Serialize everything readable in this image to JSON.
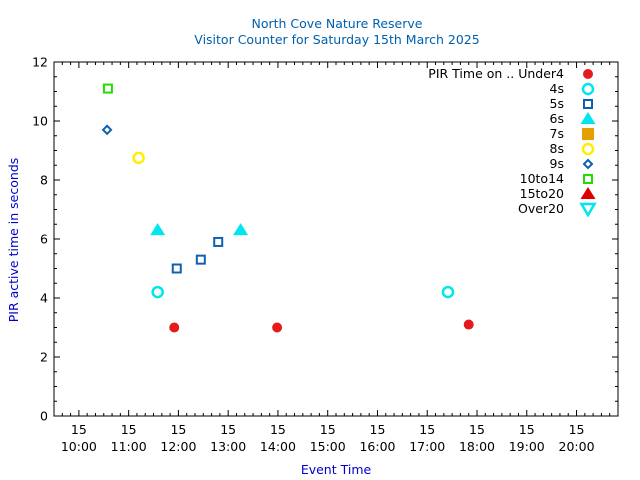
{
  "chart_data": {
    "type": "scatter",
    "title": "North Cove Nature Reserve",
    "subtitle": "Visitor Counter for Saturday 15th March 2025",
    "xlabel": "Event Time",
    "ylabel": "PIR active time in seconds",
    "xlim": [
      "09:30",
      "20:50"
    ],
    "ylim": [
      0,
      12
    ],
    "y_ticks": [
      0,
      2,
      4,
      6,
      8,
      10,
      12
    ],
    "x_ticks": [
      {
        "value": "10:00",
        "day": "15",
        "time": "10:00"
      },
      {
        "value": "11:00",
        "day": "15",
        "time": "11:00"
      },
      {
        "value": "12:00",
        "day": "15",
        "time": "12:00"
      },
      {
        "value": "13:00",
        "day": "15",
        "time": "13:00"
      },
      {
        "value": "14:00",
        "day": "15",
        "time": "14:00"
      },
      {
        "value": "15:00",
        "day": "15",
        "time": "15:00"
      },
      {
        "value": "16:00",
        "day": "15",
        "time": "16:00"
      },
      {
        "value": "17:00",
        "day": "15",
        "time": "17:00"
      },
      {
        "value": "18:00",
        "day": "15",
        "time": "18:00"
      },
      {
        "value": "19:00",
        "day": "15",
        "time": "19:00"
      },
      {
        "value": "20:00",
        "day": "15",
        "time": "20:00"
      }
    ],
    "grid": false,
    "legend_position": "top-right",
    "legend_title": "PIR Time on ..",
    "series": [
      {
        "name": "Under4",
        "marker": "circle-filled",
        "color": "#e41a1c",
        "points": [
          {
            "x": "11:55",
            "y": 3.0
          },
          {
            "x": "13:59",
            "y": 3.0
          },
          {
            "x": "17:50",
            "y": 3.1
          }
        ]
      },
      {
        "name": "4s",
        "marker": "circle-open",
        "color": "#00e5ee",
        "points": [
          {
            "x": "11:35",
            "y": 4.2
          },
          {
            "x": "17:25",
            "y": 4.2
          }
        ]
      },
      {
        "name": "5s",
        "marker": "square-open",
        "color": "#1060b0",
        "points": [
          {
            "x": "11:58",
            "y": 5.0
          },
          {
            "x": "12:27",
            "y": 5.3
          },
          {
            "x": "12:48",
            "y": 5.9
          }
        ]
      },
      {
        "name": "6s",
        "marker": "triangle-up-filled",
        "color": "#00e5ee",
        "points": [
          {
            "x": "11:35",
            "y": 6.3
          },
          {
            "x": "13:15",
            "y": 6.3
          }
        ]
      },
      {
        "name": "7s",
        "marker": "square-filled",
        "color": "#e69f00",
        "points": []
      },
      {
        "name": "8s",
        "marker": "circle-open",
        "color": "#ffee00",
        "points": [
          {
            "x": "11:12",
            "y": 8.75
          }
        ]
      },
      {
        "name": "9s",
        "marker": "diamond-open",
        "color": "#1060b0",
        "points": [
          {
            "x": "10:34",
            "y": 9.7
          }
        ]
      },
      {
        "name": "10to14",
        "marker": "square-open",
        "color": "#22dd00",
        "points": [
          {
            "x": "10:35",
            "y": 11.1
          }
        ]
      },
      {
        "name": "15to20",
        "marker": "triangle-up-filled",
        "color": "#dd0000",
        "points": []
      },
      {
        "name": "Over20",
        "marker": "triangle-down-open",
        "color": "#00e5ee",
        "points": []
      }
    ]
  }
}
